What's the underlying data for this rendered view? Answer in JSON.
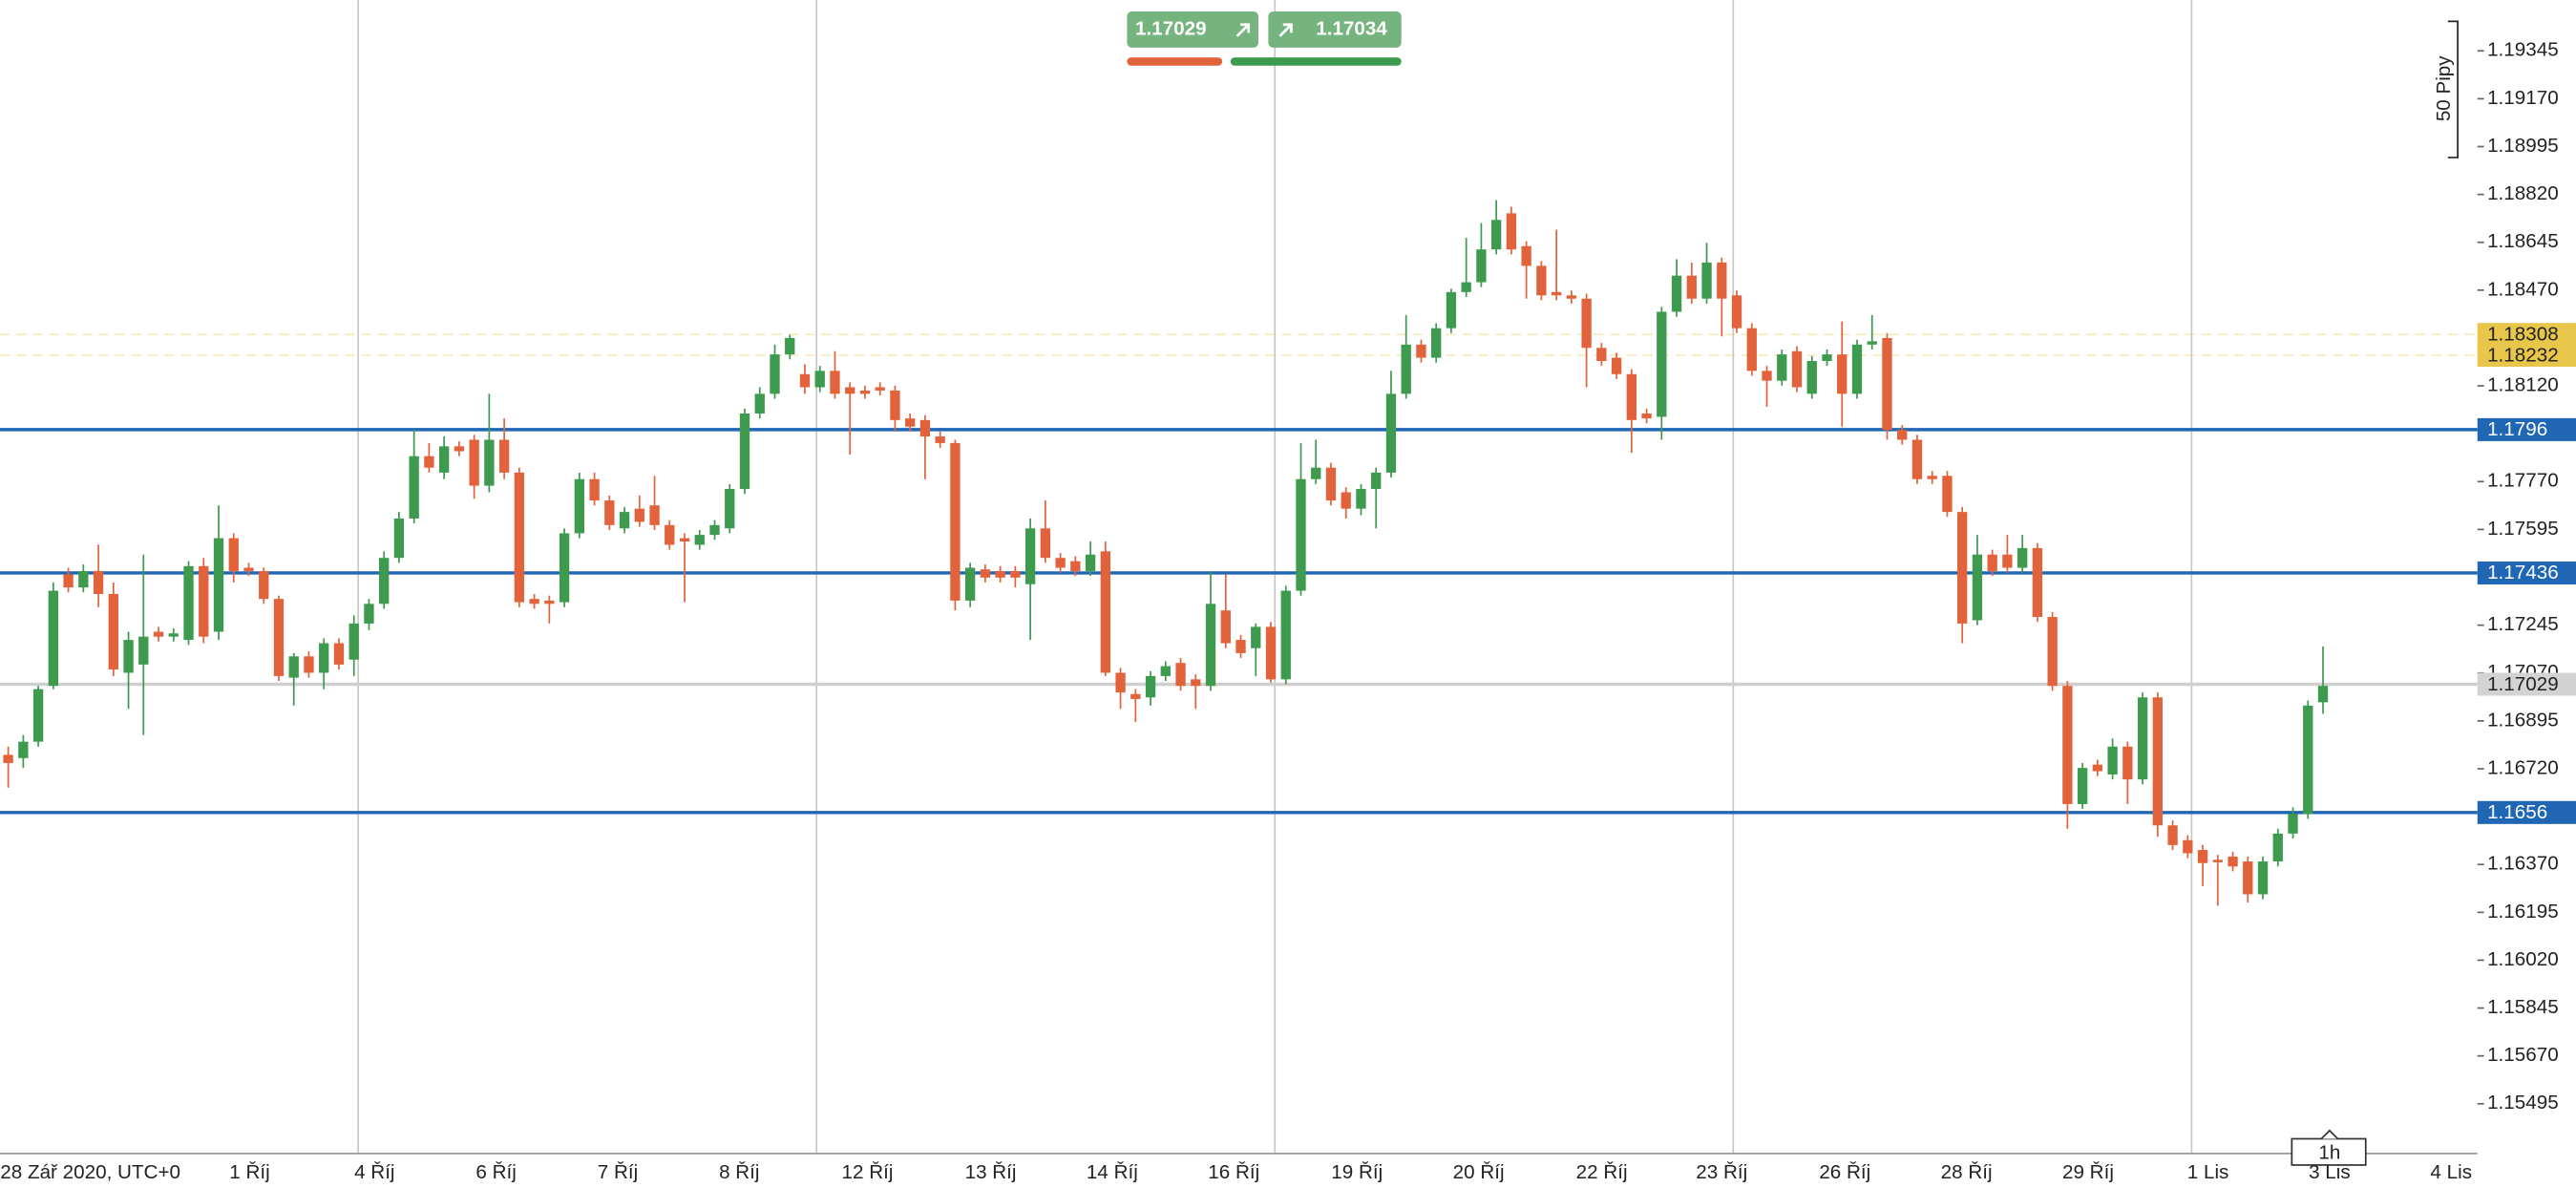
{
  "chart_data": {
    "type": "candlestick",
    "up_color": "#3d9a4f",
    "down_color": "#e2633b",
    "ylim": [
      1.15313,
      1.19531
    ],
    "yticks": [
      1.19345,
      {
        "value": 1.1917,
        "label": "1.19170"
      },
      1.18995,
      {
        "value": 1.1882,
        "label": "1.18820"
      },
      1.18645,
      {
        "value": 1.1847,
        "label": "1.18470"
      },
      {
        "value": 1.1812,
        "label": "1.18120"
      },
      {
        "value": 1.1777,
        "label": "1.17770"
      },
      1.17595,
      1.17245,
      {
        "value": 1.1707,
        "label": "1.17070"
      },
      1.16895,
      {
        "value": 1.1672,
        "label": "1.16720"
      },
      {
        "value": 1.1637,
        "label": "1.16370"
      },
      1.16195,
      {
        "value": 1.1602,
        "label": "1.16020"
      },
      1.15845,
      {
        "value": 1.1567,
        "label": "1.15670"
      },
      1.15495
    ],
    "levels": [
      1.1796,
      1.17436,
      1.1656
    ],
    "level_color": "#1f66b5",
    "highlights": [
      1.18308,
      1.18232
    ],
    "highlight_color": "#e8c64a",
    "current_price": 1.17029,
    "sell": 1.17029,
    "buy": 1.17034,
    "pip_scale_label": "50 Pipy",
    "timeframe": "1h",
    "x_labels": [
      "28 Zář 2020, UTC+0",
      "1 Říj",
      "4 Říj",
      "6 Říj",
      "7 Říj",
      "8 Říj",
      "12 Říj",
      "13 Říj",
      "14 Říj",
      "16 Říj",
      "19 Říj",
      "20 Říj",
      "22 Říj",
      "23 Říj",
      "26 Říj",
      "28 Říj",
      "29 Říj",
      "1 Lis",
      "3 Lis",
      "4 Lis"
    ],
    "candles": [
      [
        1.16771,
        1.16801,
        1.16651,
        1.16741
      ],
      [
        1.16759,
        1.16843,
        1.16723,
        1.16819
      ],
      [
        1.16819,
        1.17023,
        1.16801,
        1.17011
      ],
      [
        1.17023,
        1.17401,
        1.17011,
        1.17371
      ],
      [
        1.17431,
        1.17455,
        1.17365,
        1.17383
      ],
      [
        1.17383,
        1.17467,
        1.17365,
        1.17443
      ],
      [
        1.17443,
        1.17539,
        1.17311,
        1.17359
      ],
      [
        1.17359,
        1.17401,
        1.17059,
        1.17083
      ],
      [
        1.17071,
        1.17221,
        1.16939,
        1.17191
      ],
      [
        1.17101,
        1.17503,
        1.16843,
        1.17203
      ],
      [
        1.17221,
        1.17239,
        1.17185,
        1.17203
      ],
      [
        1.17203,
        1.17233,
        1.17185,
        1.17215
      ],
      [
        1.17191,
        1.17479,
        1.17173,
        1.17461
      ],
      [
        1.17461,
        1.17491,
        1.17179,
        1.17203
      ],
      [
        1.17221,
        1.17683,
        1.17191,
        1.17563
      ],
      [
        1.17563,
        1.17581,
        1.17401,
        1.17443
      ],
      [
        1.17455,
        1.17473,
        1.17425,
        1.17443
      ],
      [
        1.17443,
        1.17455,
        1.17323,
        1.17341
      ],
      [
        1.17341,
        1.17353,
        1.17041,
        1.17059
      ],
      [
        1.17053,
        1.17143,
        1.16951,
        1.17131
      ],
      [
        1.17131,
        1.17149,
        1.17053,
        1.17071
      ],
      [
        1.17071,
        1.17197,
        1.17011,
        1.17179
      ],
      [
        1.17179,
        1.17197,
        1.17083,
        1.17101
      ],
      [
        1.17119,
        1.17281,
        1.17059,
        1.17251
      ],
      [
        1.17251,
        1.17341,
        1.17227,
        1.17323
      ],
      [
        1.17323,
        1.17515,
        1.17305,
        1.17491
      ],
      [
        1.17491,
        1.17659,
        1.17473,
        1.17635
      ],
      [
        1.17635,
        1.17959,
        1.17617,
        1.17863
      ],
      [
        1.17863,
        1.17911,
        1.17803,
        1.17821
      ],
      [
        1.17803,
        1.17935,
        1.17779,
        1.17899
      ],
      [
        1.17899,
        1.17917,
        1.17863,
        1.17881
      ],
      [
        1.17923,
        1.17941,
        1.17707,
        1.17755
      ],
      [
        1.17755,
        1.18091,
        1.17731,
        1.17923
      ],
      [
        1.17923,
        1.18001,
        1.17779,
        1.17803
      ],
      [
        1.17803,
        1.17821,
        1.17311,
        1.17329
      ],
      [
        1.17341,
        1.17359,
        1.17305,
        1.17323
      ],
      [
        1.17335,
        1.17353,
        1.17251,
        1.17323
      ],
      [
        1.17329,
        1.17599,
        1.17311,
        1.17581
      ],
      [
        1.17581,
        1.17803,
        1.17563,
        1.17779
      ],
      [
        1.17779,
        1.17803,
        1.17683,
        1.17701
      ],
      [
        1.17701,
        1.17719,
        1.17593,
        1.17611
      ],
      [
        1.17599,
        1.17677,
        1.17581,
        1.17659
      ],
      [
        1.17671,
        1.17719,
        1.17605,
        1.17623
      ],
      [
        1.17683,
        1.17791,
        1.17593,
        1.17611
      ],
      [
        1.17611,
        1.17629,
        1.17521,
        1.17539
      ],
      [
        1.17563,
        1.17581,
        1.17329,
        1.17551
      ],
      [
        1.17539,
        1.17593,
        1.17521,
        1.17575
      ],
      [
        1.17575,
        1.17629,
        1.17557,
        1.17611
      ],
      [
        1.17599,
        1.17761,
        1.17581,
        1.17743
      ],
      [
        1.17743,
        1.18037,
        1.17725,
        1.18019
      ],
      [
        1.18019,
        1.18115,
        1.18001,
        1.18091
      ],
      [
        1.18091,
        1.18271,
        1.18073,
        1.18235
      ],
      [
        1.18235,
        1.18307,
        1.18217,
        1.18295
      ],
      [
        1.18163,
        1.18199,
        1.18091,
        1.18115
      ],
      [
        1.18115,
        1.18193,
        1.18097,
        1.18175
      ],
      [
        1.18175,
        1.18247,
        1.18073,
        1.18091
      ],
      [
        1.18115,
        1.18133,
        1.17869,
        1.18091
      ],
      [
        1.18103,
        1.18121,
        1.18073,
        1.18091
      ],
      [
        1.18115,
        1.18133,
        1.18085,
        1.18103
      ],
      [
        1.18103,
        1.18121,
        1.17953,
        1.17995
      ],
      [
        1.18001,
        1.18019,
        1.17953,
        1.17971
      ],
      [
        1.17995,
        1.18013,
        1.17779,
        1.17935
      ],
      [
        1.17935,
        1.17953,
        1.17893,
        1.17911
      ],
      [
        1.17911,
        1.17923,
        1.17299,
        1.17335
      ],
      [
        1.17335,
        1.17473,
        1.17311,
        1.17455
      ],
      [
        1.17449,
        1.17467,
        1.17401,
        1.17419
      ],
      [
        1.17443,
        1.17461,
        1.17401,
        1.17419
      ],
      [
        1.17443,
        1.17461,
        1.17383,
        1.17419
      ],
      [
        1.17395,
        1.17635,
        1.17191,
        1.17599
      ],
      [
        1.17599,
        1.17701,
        1.17473,
        1.17491
      ],
      [
        1.17491,
        1.17509,
        1.17437,
        1.17455
      ],
      [
        1.17479,
        1.17497,
        1.17425,
        1.17443
      ],
      [
        1.17443,
        1.17551,
        1.17425,
        1.17503
      ],
      [
        1.17515,
        1.17551,
        1.17059,
        1.17071
      ],
      [
        1.17071,
        1.17089,
        1.16939,
        1.16999
      ],
      [
        1.16993,
        1.17011,
        1.16891,
        1.16975
      ],
      [
        1.16981,
        1.17077,
        1.16951,
        1.17059
      ],
      [
        1.17059,
        1.17113,
        1.17041,
        1.17095
      ],
      [
        1.17107,
        1.17125,
        1.17005,
        1.17023
      ],
      [
        1.17047,
        1.17065,
        1.16939,
        1.17023
      ],
      [
        1.17023,
        1.17443,
        1.17005,
        1.17323
      ],
      [
        1.17299,
        1.17431,
        1.17161,
        1.17179
      ],
      [
        1.17191,
        1.17209,
        1.17125,
        1.17143
      ],
      [
        1.17161,
        1.17251,
        1.17059,
        1.17239
      ],
      [
        1.17239,
        1.17257,
        1.17035,
        1.17047
      ],
      [
        1.17047,
        1.17389,
        1.17029,
        1.17371
      ],
      [
        1.17371,
        1.17911,
        1.17353,
        1.17779
      ],
      [
        1.17779,
        1.17923,
        1.17761,
        1.17821
      ],
      [
        1.17821,
        1.17839,
        1.17683,
        1.17701
      ],
      [
        1.17731,
        1.17749,
        1.17635,
        1.17671
      ],
      [
        1.17671,
        1.17761,
        1.17647,
        1.17743
      ],
      [
        1.17743,
        1.17821,
        1.17599,
        1.17803
      ],
      [
        1.17803,
        1.18175,
        1.17785,
        1.18091
      ],
      [
        1.18091,
        1.18379,
        1.18073,
        1.18271
      ],
      [
        1.18271,
        1.18289,
        1.18205,
        1.18223
      ],
      [
        1.18223,
        1.18349,
        1.18205,
        1.18331
      ],
      [
        1.18331,
        1.18475,
        1.18313,
        1.18463
      ],
      [
        1.18463,
        1.18661,
        1.18445,
        1.18499
      ],
      [
        1.18499,
        1.18715,
        1.18481,
        1.18619
      ],
      [
        1.18619,
        1.18799,
        1.18601,
        1.18727
      ],
      [
        1.18751,
        1.18775,
        1.18601,
        1.18619
      ],
      [
        1.18631,
        1.18649,
        1.18439,
        1.18559
      ],
      [
        1.18559,
        1.18577,
        1.18433,
        1.18451
      ],
      [
        1.18463,
        1.18691,
        1.18433,
        1.18451
      ],
      [
        1.18451,
        1.18469,
        1.18421,
        1.18439
      ],
      [
        1.18439,
        1.18457,
        1.18115,
        1.18259
      ],
      [
        1.18259,
        1.18277,
        1.18193,
        1.18211
      ],
      [
        1.18223,
        1.18241,
        1.18145,
        1.18163
      ],
      [
        1.18163,
        1.18181,
        1.17875,
        1.17995
      ],
      [
        1.18019,
        1.18037,
        1.17983,
        1.18001
      ],
      [
        1.18007,
        1.18409,
        1.17923,
        1.18391
      ],
      [
        1.18391,
        1.18583,
        1.18373,
        1.18523
      ],
      [
        1.18523,
        1.18571,
        1.18421,
        1.18439
      ],
      [
        1.18439,
        1.18643,
        1.18421,
        1.18571
      ],
      [
        1.18571,
        1.18589,
        1.18301,
        1.18439
      ],
      [
        1.18451,
        1.18469,
        1.18313,
        1.18331
      ],
      [
        1.18331,
        1.18349,
        1.18157,
        1.18175
      ],
      [
        1.18175,
        1.18193,
        1.18043,
        1.18139
      ],
      [
        1.18139,
        1.18253,
        1.18121,
        1.18235
      ],
      [
        1.18247,
        1.18265,
        1.18097,
        1.18115
      ],
      [
        1.18091,
        1.18229,
        1.18073,
        1.18211
      ],
      [
        1.18211,
        1.18253,
        1.18193,
        1.18235
      ],
      [
        1.18235,
        1.18355,
        1.17971,
        1.18091
      ],
      [
        1.18091,
        1.18289,
        1.18073,
        1.18271
      ],
      [
        1.18271,
        1.18379,
        1.18253,
        1.18283
      ],
      [
        1.18295,
        1.18313,
        1.17923,
        1.17959
      ],
      [
        1.17959,
        1.17977,
        1.17905,
        1.17923
      ],
      [
        1.17923,
        1.17941,
        1.17761,
        1.17779
      ],
      [
        1.17791,
        1.17809,
        1.17761,
        1.17779
      ],
      [
        1.17791,
        1.17809,
        1.17641,
        1.17659
      ],
      [
        1.17659,
        1.17677,
        1.17179,
        1.17251
      ],
      [
        1.17263,
        1.17575,
        1.17245,
        1.17503
      ],
      [
        1.17503,
        1.17521,
        1.17425,
        1.17443
      ],
      [
        1.17503,
        1.17575,
        1.17437,
        1.17455
      ],
      [
        1.17455,
        1.17575,
        1.17437,
        1.17527
      ],
      [
        1.17527,
        1.17545,
        1.17257,
        1.17275
      ],
      [
        1.17275,
        1.17293,
        1.17005,
        1.17023
      ],
      [
        1.17023,
        1.17041,
        1.16501,
        1.16591
      ],
      [
        1.16591,
        1.16741,
        1.16573,
        1.16723
      ],
      [
        1.16735,
        1.16753,
        1.16693,
        1.16711
      ],
      [
        1.16699,
        1.16831,
        1.16681,
        1.16801
      ],
      [
        1.16801,
        1.16819,
        1.16591,
        1.16681
      ],
      [
        1.16681,
        1.16999,
        1.16663,
        1.16981
      ],
      [
        1.16981,
        1.16999,
        1.16471,
        1.16513
      ],
      [
        1.16513,
        1.16531,
        1.16423,
        1.16441
      ],
      [
        1.16459,
        1.16477,
        1.16393,
        1.16411
      ],
      [
        1.16423,
        1.16441,
        1.16291,
        1.16375
      ],
      [
        1.16387,
        1.16405,
        1.16219,
        1.16381
      ],
      [
        1.16399,
        1.16417,
        1.16345,
        1.16363
      ],
      [
        1.16381,
        1.16399,
        1.16231,
        1.16261
      ],
      [
        1.16261,
        1.16399,
        1.16243,
        1.16381
      ],
      [
        1.16381,
        1.16501,
        1.16363,
        1.16483
      ],
      [
        1.16483,
        1.16579,
        1.16465,
        1.16555
      ],
      [
        1.16555,
        1.16969,
        1.16537,
        1.16951
      ],
      [
        1.16963,
        1.17167,
        1.16921,
        1.17023
      ]
    ]
  }
}
